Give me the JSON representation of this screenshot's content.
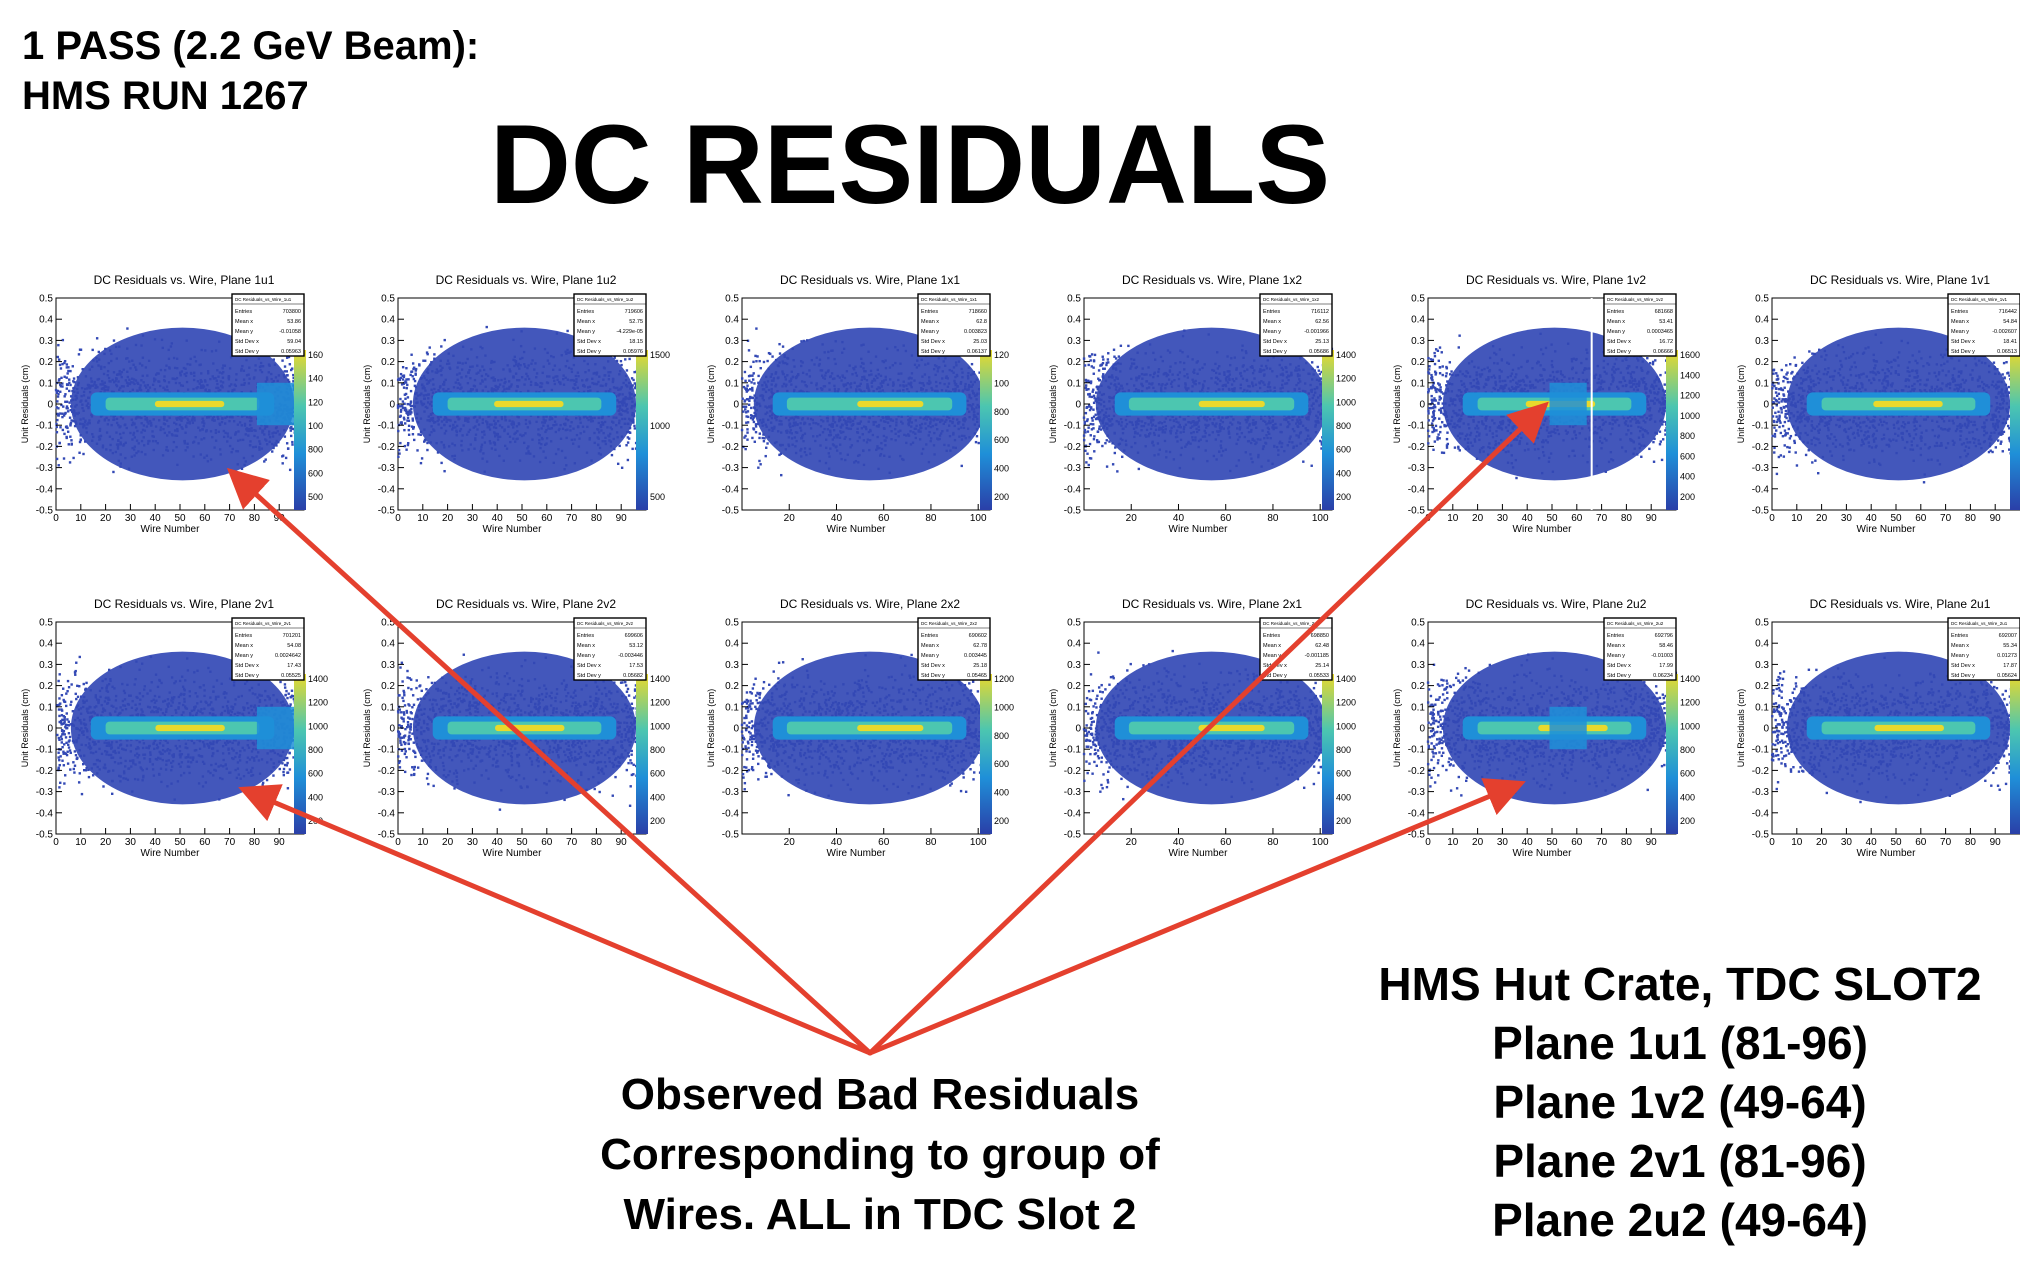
{
  "header": {
    "line1": "1 PASS (2.2 GeV Beam):",
    "line2": "HMS RUN 1267",
    "title": "DC RESIDUALS"
  },
  "colors": {
    "background_fill": "#3349b5",
    "core_low": "#1f8fd8",
    "core_mid": "#4cc6b0",
    "core_high": "#e9d92c",
    "arrow": "#e4402e"
  },
  "chart_data": [
    {
      "type": "heatmap",
      "title": "DC Residuals vs. Wire, Plane 1u1",
      "xlabel": "Wire Number",
      "ylabel": "Unit Residuals (cm)",
      "xlim": [
        0,
        100
      ],
      "ylim": [
        -0.5,
        0.5
      ],
      "xticks": [
        "0",
        "10",
        "20",
        "30",
        "40",
        "50",
        "60",
        "70",
        "80",
        "90"
      ],
      "yticks": [
        "-0.5",
        "-0.4",
        "-0.3",
        "-0.2",
        "-0.1",
        "0",
        "0.1",
        "0.2",
        "0.3",
        "0.4",
        "0.5"
      ],
      "z_ticks": [
        "500",
        "600",
        "800",
        "100",
        "120",
        "140",
        "160"
      ],
      "stats": {
        "header": "DC Residuals_vs_Wire_1u1",
        "Entries": "703800",
        "Mean x": "53.86",
        "Mean y": "-0.01058",
        "Std Dev x": "59.04",
        "Std Dev y": "0.05963"
      },
      "bad_wires": [
        81,
        96
      ]
    },
    {
      "type": "heatmap",
      "title": "DC Residuals vs. Wire, Plane 1u2",
      "xlabel": "Wire Number",
      "ylabel": "Unit Residuals (cm)",
      "xlim": [
        0,
        100
      ],
      "ylim": [
        -0.5,
        0.5
      ],
      "xticks": [
        "0",
        "10",
        "20",
        "30",
        "40",
        "50",
        "60",
        "70",
        "80",
        "90"
      ],
      "yticks": [
        "-0.5",
        "-0.4",
        "-0.3",
        "-0.2",
        "-0.1",
        "0",
        "0.1",
        "0.2",
        "0.3",
        "0.4",
        "0.5"
      ],
      "z_ticks": [
        "500",
        "1000",
        "1500"
      ],
      "stats": {
        "header": "DC Residuals_vs_Wire_1u2",
        "Entries": "719606",
        "Mean x": "52.75",
        "Mean y": "-4.229e-05",
        "Std Dev x": "18.15",
        "Std Dev y": "0.05976"
      }
    },
    {
      "type": "heatmap",
      "title": "DC Residuals vs. Wire, Plane 1x1",
      "xlabel": "Wire Number",
      "ylabel": "Unit Residuals (cm)",
      "xlim": [
        0,
        105
      ],
      "ylim": [
        -0.5,
        0.5
      ],
      "xticks": [
        "20",
        "40",
        "60",
        "80",
        "100"
      ],
      "yticks": [
        "-0.5",
        "-0.4",
        "-0.3",
        "-0.2",
        "-0.1",
        "0",
        "0.1",
        "0.2",
        "0.3",
        "0.4",
        "0.5"
      ],
      "z_ticks": [
        "200",
        "400",
        "600",
        "800",
        "100",
        "120"
      ],
      "stats": {
        "header": "DC Residuals_vs_Wire_1x1",
        "Entries": "718660",
        "Mean x": "62.8",
        "Mean y": "0.003823",
        "Std Dev x": "25.03",
        "Std Dev y": "0.06137"
      }
    },
    {
      "type": "heatmap",
      "title": "DC Residuals vs. Wire, Plane 1x2",
      "xlabel": "Wire Number",
      "ylabel": "Unit Residuals (cm)",
      "xlim": [
        0,
        105
      ],
      "ylim": [
        -0.5,
        0.5
      ],
      "xticks": [
        "20",
        "40",
        "60",
        "80",
        "100"
      ],
      "yticks": [
        "-0.5",
        "-0.4",
        "-0.3",
        "-0.2",
        "-0.1",
        "0",
        "0.1",
        "0.2",
        "0.3",
        "0.4",
        "0.5"
      ],
      "z_ticks": [
        "200",
        "400",
        "600",
        "800",
        "1000",
        "1200",
        "1400"
      ],
      "stats": {
        "header": "DC Residuals_vs_Wire_1x2",
        "Entries": "716112",
        "Mean x": "62.56",
        "Mean y": "-0.001966",
        "Std Dev x": "25.13",
        "Std Dev y": "0.05686"
      }
    },
    {
      "type": "heatmap",
      "title": "DC Residuals vs. Wire, Plane 1v2",
      "xlabel": "Wire Number",
      "ylabel": "Unit Residuals (cm)",
      "xlim": [
        0,
        100
      ],
      "ylim": [
        -0.5,
        0.5
      ],
      "xticks": [
        "0",
        "10",
        "20",
        "30",
        "40",
        "50",
        "60",
        "70",
        "80",
        "90"
      ],
      "yticks": [
        "-0.5",
        "-0.4",
        "-0.3",
        "-0.2",
        "-0.1",
        "0",
        "0.1",
        "0.2",
        "0.3",
        "0.4",
        "0.5"
      ],
      "z_ticks": [
        "200",
        "400",
        "600",
        "800",
        "1000",
        "1200",
        "1400",
        "1600"
      ],
      "stats": {
        "header": "DC Residuals_vs_Wire_1v2",
        "Entries": "681668",
        "Mean x": "53.41",
        "Mean y": "0.0003465",
        "Std Dev x": "16.72",
        "Std Dev y": "0.06666"
      },
      "bad_wires": [
        49,
        64
      ],
      "dead_wire": 66
    },
    {
      "type": "heatmap",
      "title": "DC Residuals vs. Wire, Plane 1v1",
      "xlabel": "Wire Number",
      "ylabel": "Unit Residuals (cm)",
      "xlim": [
        0,
        100
      ],
      "ylim": [
        -0.5,
        0.5
      ],
      "xticks": [
        "0",
        "10",
        "20",
        "30",
        "40",
        "50",
        "60",
        "70",
        "80",
        "90"
      ],
      "yticks": [
        "-0.5",
        "-0.4",
        "-0.3",
        "-0.2",
        "-0.1",
        "0",
        "0.1",
        "0.2",
        "0.3",
        "0.4",
        "0.5"
      ],
      "z_ticks": [
        "200",
        "400",
        "600",
        "800",
        "1000",
        "1200",
        "1400",
        "1600"
      ],
      "stats": {
        "header": "DC Residuals_vs_Wire_1v1",
        "Entries": "716442",
        "Mean x": "54.84",
        "Mean y": "-0.002607",
        "Std Dev x": "18.41",
        "Std Dev y": "0.06513"
      }
    },
    {
      "type": "heatmap",
      "title": "DC Residuals vs. Wire, Plane 2v1",
      "xlabel": "Wire Number",
      "ylabel": "Unit Residuals (cm)",
      "xlim": [
        0,
        100
      ],
      "ylim": [
        -0.5,
        0.5
      ],
      "xticks": [
        "0",
        "10",
        "20",
        "30",
        "40",
        "50",
        "60",
        "70",
        "80",
        "90"
      ],
      "yticks": [
        "-0.5",
        "-0.4",
        "-0.3",
        "-0.2",
        "-0.1",
        "0",
        "0.1",
        "0.2",
        "0.3",
        "0.4",
        "0.5"
      ],
      "z_ticks": [
        "200",
        "400",
        "600",
        "800",
        "1000",
        "1200",
        "1400"
      ],
      "stats": {
        "header": "DC Residuals_vs_Wire_2v1",
        "Entries": "701201",
        "Mean x": "54.08",
        "Mean y": "0.0024642",
        "Std Dev x": "17.43",
        "Std Dev y": "0.05525"
      },
      "bad_wires": [
        81,
        96
      ]
    },
    {
      "type": "heatmap",
      "title": "DC Residuals vs. Wire, Plane 2v2",
      "xlabel": "Wire Number",
      "ylabel": "Unit Residuals (cm)",
      "xlim": [
        0,
        100
      ],
      "ylim": [
        -0.5,
        0.5
      ],
      "xticks": [
        "0",
        "10",
        "20",
        "30",
        "40",
        "50",
        "60",
        "70",
        "80",
        "90"
      ],
      "yticks": [
        "-0.5",
        "-0.4",
        "-0.3",
        "-0.2",
        "-0.1",
        "0",
        "0.1",
        "0.2",
        "0.3",
        "0.4",
        "0.5"
      ],
      "z_ticks": [
        "200",
        "400",
        "600",
        "800",
        "1000",
        "1200",
        "1400"
      ],
      "stats": {
        "header": "DC Residuals_vs_Wire_2v2",
        "Entries": "699606",
        "Mean x": "53.12",
        "Mean y": "-0.003446",
        "Std Dev x": "17.53",
        "Std Dev y": "0.05682"
      }
    },
    {
      "type": "heatmap",
      "title": "DC Residuals vs. Wire, Plane 2x2",
      "xlabel": "Wire Number",
      "ylabel": "Unit Residuals (cm)",
      "xlim": [
        0,
        105
      ],
      "ylim": [
        -0.5,
        0.5
      ],
      "xticks": [
        "20",
        "40",
        "60",
        "80",
        "100"
      ],
      "yticks": [
        "-0.5",
        "-0.4",
        "-0.3",
        "-0.2",
        "-0.1",
        "0",
        "0.1",
        "0.2",
        "0.3",
        "0.4",
        "0.5"
      ],
      "z_ticks": [
        "200",
        "400",
        "600",
        "800",
        "1000",
        "1200"
      ],
      "stats": {
        "header": "DC Residuals_vs_Wire_2x2",
        "Entries": "690602",
        "Mean x": "62.78",
        "Mean y": "0.003445",
        "Std Dev x": "25.18",
        "Std Dev y": "0.05465"
      }
    },
    {
      "type": "heatmap",
      "title": "DC Residuals vs. Wire, Plane 2x1",
      "xlabel": "Wire Number",
      "ylabel": "Unit Residuals (cm)",
      "xlim": [
        0,
        105
      ],
      "ylim": [
        -0.5,
        0.5
      ],
      "xticks": [
        "20",
        "40",
        "60",
        "80",
        "100"
      ],
      "yticks": [
        "-0.5",
        "-0.4",
        "-0.3",
        "-0.2",
        "-0.1",
        "0",
        "0.1",
        "0.2",
        "0.3",
        "0.4",
        "0.5"
      ],
      "z_ticks": [
        "200",
        "400",
        "600",
        "800",
        "1000",
        "1200",
        "1400"
      ],
      "stats": {
        "header": "DC Residuals_vs_Wire_2x1",
        "Entries": "698850",
        "Mean x": "62.48",
        "Mean y": "-0.001185",
        "Std Dev x": "25.14",
        "Std Dev y": "0.05533"
      }
    },
    {
      "type": "heatmap",
      "title": "DC Residuals vs. Wire, Plane 2u2",
      "xlabel": "Wire Number",
      "ylabel": "Unit Residuals (cm)",
      "xlim": [
        0,
        100
      ],
      "ylim": [
        -0.5,
        0.5
      ],
      "xticks": [
        "0",
        "10",
        "20",
        "30",
        "40",
        "50",
        "60",
        "70",
        "80",
        "90"
      ],
      "yticks": [
        "-0.5",
        "-0.4",
        "-0.3",
        "-0.2",
        "-0.1",
        "0",
        "0.1",
        "0.2",
        "0.3",
        "0.4",
        "0.5"
      ],
      "z_ticks": [
        "200",
        "400",
        "600",
        "800",
        "1000",
        "1200",
        "1400"
      ],
      "stats": {
        "header": "DC Residuals_vs_Wire_2u2",
        "Entries": "692796",
        "Mean x": "58.46",
        "Mean y": "-0.01003",
        "Std Dev x": "17.99",
        "Std Dev y": "0.06234"
      },
      "bad_wires": [
        49,
        64
      ]
    },
    {
      "type": "heatmap",
      "title": "DC Residuals vs. Wire, Plane 2u1",
      "xlabel": "Wire Number",
      "ylabel": "Unit Residuals (cm)",
      "xlim": [
        0,
        100
      ],
      "ylim": [
        -0.5,
        0.5
      ],
      "xticks": [
        "0",
        "10",
        "20",
        "30",
        "40",
        "50",
        "60",
        "70",
        "80",
        "90"
      ],
      "yticks": [
        "-0.5",
        "-0.4",
        "-0.3",
        "-0.2",
        "-0.1",
        "0",
        "0.1",
        "0.2",
        "0.3",
        "0.4",
        "0.5"
      ],
      "z_ticks": [
        "200",
        "400",
        "600",
        "800",
        "1000",
        "1200"
      ],
      "stats": {
        "header": "DC Residuals_vs_Wire_2u1",
        "Entries": "692007",
        "Mean x": "55.34",
        "Mean y": "0.01273",
        "Std Dev x": "17.87",
        "Std Dev y": "0.05624"
      }
    }
  ],
  "notes": {
    "observed": [
      "Observed Bad Residuals",
      "Corresponding to group of",
      "Wires. ALL in TDC Slot 2"
    ],
    "crate": [
      "HMS Hut Crate, TDC SLOT2",
      "Plane 1u1 (81-96)",
      "Plane 1v2 (49-64)",
      "Plane 2v1 (81-96)",
      "Plane 2u2 (49-64)"
    ]
  }
}
